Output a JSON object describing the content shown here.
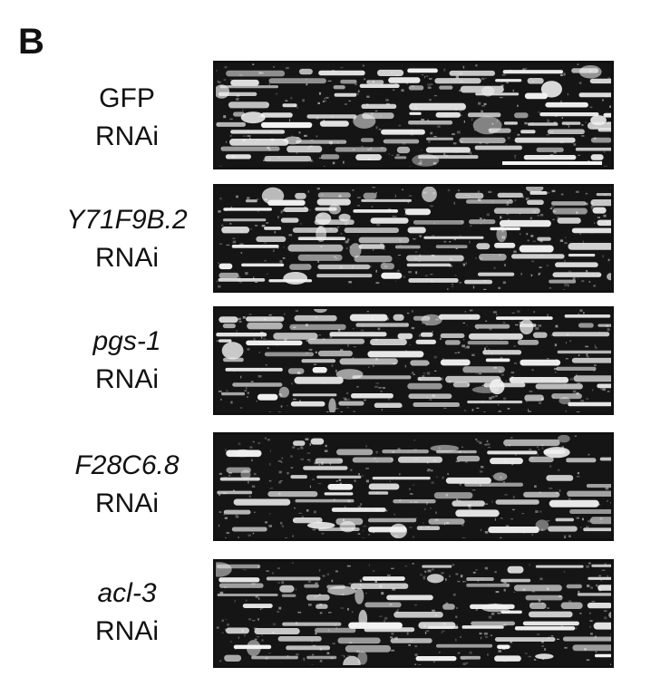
{
  "panel_label": "B",
  "rows": [
    {
      "gene": "GFP",
      "gene_italic": false,
      "treatment": "RNAi",
      "seed": 11,
      "bright": 0.55
    },
    {
      "gene": "Y71F9B.2",
      "gene_italic": true,
      "treatment": "RNAi",
      "seed": 23,
      "bright": 0.5
    },
    {
      "gene": "pgs-1",
      "gene_italic": true,
      "treatment": "RNAi",
      "seed": 37,
      "bright": 0.5
    },
    {
      "gene": "F28C6.8",
      "gene_italic": true,
      "treatment": "RNAi",
      "seed": 53,
      "bright": 0.45
    },
    {
      "gene": "acl-3",
      "gene_italic": true,
      "treatment": "RNAi",
      "seed": 71,
      "bright": 0.5
    }
  ],
  "colors": {
    "stain": "#f2f2f2",
    "background": "#151515"
  }
}
